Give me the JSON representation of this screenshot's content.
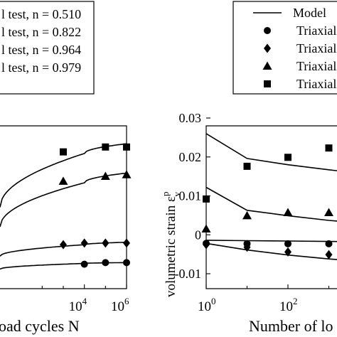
{
  "chart_data": [
    {
      "type": "line",
      "title": "",
      "xlabel": "Number of load cycles N",
      "xlabel_visible": "oad cycles N",
      "ylabel": "",
      "xscale": "log",
      "xlim": [
        1,
        1000000
      ],
      "x_tick_labels": [
        {
          "value": 10000,
          "base": "10",
          "exp": "4"
        },
        {
          "value": 1000000,
          "base": "10",
          "exp": "6"
        }
      ],
      "legend": {
        "placement": "top-left",
        "entries": [
          {
            "label": "l test, n = 0.510",
            "marker": "circle"
          },
          {
            "label": "l test, n = 0.822",
            "marker": "diamond"
          },
          {
            "label": "l test, n = 0.964",
            "marker": "triangle"
          },
          {
            "label": "l test, n = 0.979",
            "marker": "square"
          }
        ]
      },
      "series": [
        {
          "marker": "square",
          "points": [
            [
              1000,
              0.84
            ],
            [
              100000,
              0.87
            ],
            [
              1000000,
              0.87
            ]
          ],
          "model": [
            [
              1,
              0.5
            ],
            [
              10000,
              0.83
            ],
            [
              1000000,
              0.89
            ]
          ]
        },
        {
          "marker": "triangle",
          "points": [
            [
              1000,
              0.66
            ],
            [
              100000,
              0.69
            ],
            [
              1000000,
              0.7
            ]
          ],
          "model": [
            [
              1,
              0.38
            ],
            [
              10000,
              0.65
            ],
            [
              1000000,
              0.71
            ]
          ]
        },
        {
          "marker": "diamond",
          "points": [
            [
              1000,
              0.27
            ],
            [
              10000,
              0.28
            ],
            [
              100000,
              0.28
            ],
            [
              1000000,
              0.28
            ]
          ],
          "model": [
            [
              1,
              0.2
            ],
            [
              10000,
              0.27
            ],
            [
              1000000,
              0.285
            ]
          ]
        },
        {
          "marker": "circle",
          "points": [
            [
              10000,
              0.15
            ],
            [
              100000,
              0.16
            ],
            [
              1000000,
              0.16
            ]
          ],
          "model": [
            [
              1,
              0.12
            ],
            [
              10000,
              0.155
            ],
            [
              1000000,
              0.16
            ]
          ]
        }
      ]
    },
    {
      "type": "line",
      "title": "",
      "xlabel": "Number of load cycles N",
      "xlabel_visible": "Number of lo",
      "ylabel": "volumetric strain ε_v^p",
      "ylabel_main": "volumetric strain ",
      "ylabel_symbol": "ε",
      "ylabel_sub": "v",
      "ylabel_sup": "p",
      "xscale": "log",
      "xlim": [
        1,
        10000
      ],
      "ylim": [
        -0.015,
        0.03
      ],
      "y_ticks": [
        -0.01,
        0,
        0.01,
        0.02,
        0.03
      ],
      "y_tick_labels": [
        "-0.01",
        "0",
        "0.01",
        "0.02",
        "0.03"
      ],
      "x_tick_labels": [
        {
          "value": 1,
          "base": "10",
          "exp": "0"
        },
        {
          "value": 100,
          "base": "10",
          "exp": "2"
        }
      ],
      "legend": {
        "placement": "top-right",
        "entries": [
          {
            "label": "Model",
            "marker": "line"
          },
          {
            "label": "Triaxial",
            "marker": "circle"
          },
          {
            "label": "Triaxial",
            "marker": "diamond"
          },
          {
            "label": "Triaxial",
            "marker": "triangle"
          },
          {
            "label": "Triaxial",
            "marker": "square"
          }
        ]
      },
      "series": [
        {
          "marker": "square",
          "points": [
            [
              1,
              0.0092
            ],
            [
              10,
              0.0176
            ],
            [
              100,
              0.0199
            ],
            [
              1000,
              0.0223
            ]
          ],
          "model": [
            [
              1,
              0.026
            ],
            [
              10,
              0.0196
            ],
            [
              100,
              0.018
            ],
            [
              1000,
              0.0167
            ],
            [
              10000,
              0.0155
            ]
          ]
        },
        {
          "marker": "triangle",
          "points": [
            [
              1,
              0.0015
            ],
            [
              10,
              0.0049
            ],
            [
              100,
              0.0057
            ],
            [
              1000,
              0.0057
            ]
          ],
          "model": [
            [
              1,
              0.0122
            ],
            [
              10,
              0.0063
            ],
            [
              100,
              0.0049
            ],
            [
              1000,
              0.0037
            ],
            [
              10000,
              0.0028
            ]
          ]
        },
        {
          "marker": "circle",
          "points": [
            [
              1,
              -0.0022
            ],
            [
              10,
              -0.0023
            ],
            [
              100,
              -0.0023
            ],
            [
              1000,
              -0.0023
            ]
          ],
          "model": [
            [
              1,
              -0.0014
            ],
            [
              10,
              -0.0015
            ],
            [
              100,
              -0.0016
            ],
            [
              1000,
              -0.0017
            ],
            [
              10000,
              -0.0018
            ]
          ]
        },
        {
          "marker": "diamond",
          "points": [
            [
              1,
              -0.0025
            ],
            [
              10,
              -0.0032
            ],
            [
              100,
              -0.0044
            ],
            [
              1000,
              -0.0051
            ]
          ],
          "model": [
            [
              1,
              -0.0022
            ],
            [
              10,
              -0.0039
            ],
            [
              100,
              -0.0052
            ],
            [
              1000,
              -0.0062
            ],
            [
              10000,
              -0.007
            ]
          ]
        }
      ]
    }
  ]
}
